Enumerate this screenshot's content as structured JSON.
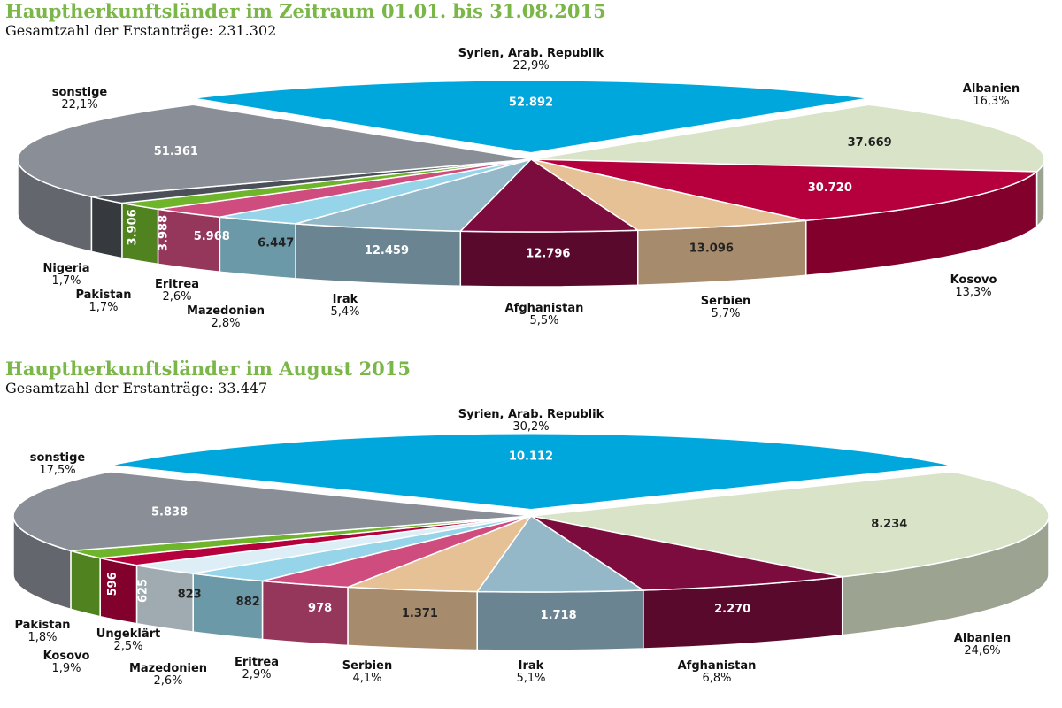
{
  "chart_data": [
    {
      "type": "pie",
      "title": "Hauptherkunftsländer im Zeitraum 01.01. bis 31.08.2015",
      "subtitle": "Gesamtzahl der Erstanträge: 231.302",
      "categories": [
        "Syrien, Arab. Republik",
        "Albanien",
        "Kosovo",
        "Serbien",
        "Afghanistan",
        "Irak",
        "Mazedonien",
        "Eritrea",
        "Pakistan",
        "Nigeria",
        "sonstige"
      ],
      "values": [
        52892,
        37669,
        30720,
        13096,
        12796,
        12459,
        6447,
        5968,
        3988,
        3906,
        51361
      ],
      "value_labels": [
        "52.892",
        "37.669",
        "30.720",
        "13.096",
        "12.796",
        "12.459",
        "6.447",
        "5.968",
        "3.988",
        "3.906",
        "51.361"
      ],
      "percent_labels": [
        "22,9%",
        "16,3%",
        "13,3%",
        "5,7%",
        "5,5%",
        "5,4%",
        "2,8%",
        "2,6%",
        "1,7%",
        "1,7%",
        "22,1%"
      ],
      "colors": [
        "#00a7dc",
        "#d8e3c8",
        "#b5003d",
        "#e6c196",
        "#7b0c3d",
        "#95b8c9",
        "#96d4ea",
        "#cf4d7e",
        "#6fb52c",
        "#4b5058",
        "#8a8e96"
      ]
    },
    {
      "type": "pie",
      "title": "Hauptherkunftsländer im August 2015",
      "subtitle": "Gesamtzahl der Erstanträge: 33.447",
      "categories": [
        "Syrien, Arab. Republik",
        "Albanien",
        "Afghanistan",
        "Irak",
        "Serbien",
        "Eritrea",
        "Mazedonien",
        "Ungeklärt",
        "Kosovo",
        "Pakistan",
        "sonstige"
      ],
      "values": [
        10112,
        8234,
        2270,
        1718,
        1371,
        978,
        882,
        823,
        625,
        596,
        5838
      ],
      "value_labels": [
        "10.112",
        "8.234",
        "2.270",
        "1.718",
        "1.371",
        "978",
        "882",
        "823",
        "625",
        "596",
        "5.838"
      ],
      "percent_labels": [
        "30,2%",
        "24,6%",
        "6,8%",
        "5,1%",
        "4,1%",
        "2,9%",
        "2,6%",
        "2,5%",
        "1,9%",
        "1,8%",
        "17,5%"
      ],
      "colors": [
        "#00a7dc",
        "#d8e3c8",
        "#7b0c3d",
        "#95b8c9",
        "#e6c196",
        "#cf4d7e",
        "#96d4ea",
        "#deeef6",
        "#b5003d",
        "#6fb52c",
        "#8a8e96"
      ]
    }
  ]
}
